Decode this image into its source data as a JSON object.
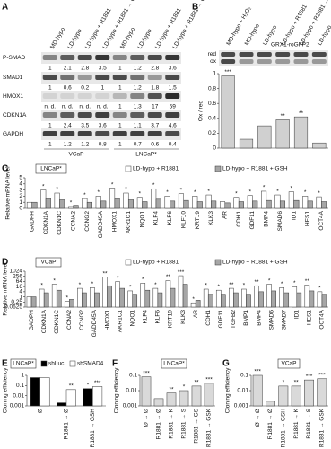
{
  "panel_labels": [
    "A",
    "B",
    "C",
    "D",
    "E",
    "F",
    "G"
  ],
  "blot": {
    "lanes": [
      "MD-hypo",
      "LD-hypo",
      "LD-hypo + R1881",
      "LD-hypo + R1881 → GSH",
      "MD-hypo",
      "LD-hypo",
      "LD-hypo + R1881",
      "LD-hypo + R1881 → GSH"
    ],
    "rows": [
      {
        "label": "P-SMAD",
        "values": [
          1,
          2.1,
          2.8,
          3.5,
          1,
          1.2,
          2.8,
          3.6
        ]
      },
      {
        "label": "SMAD1",
        "values": [
          1,
          0.6,
          0.2,
          1,
          1,
          1.2,
          1.8,
          1.5
        ]
      },
      {
        "label": "HMOX1",
        "values": [
          "n. d.",
          "n. d.",
          "n. d.",
          "n. d.",
          1,
          1.3,
          17,
          59
        ]
      },
      {
        "label": "CDKN1A",
        "values": [
          1,
          2.4,
          3.5,
          3.6,
          1,
          1.1,
          3.7,
          4.6
        ]
      },
      {
        "label": "GAPDH",
        "values": [
          1,
          1.2,
          1.2,
          0.8,
          1,
          0.7,
          0.6,
          0.4
        ]
      }
    ],
    "groups": [
      "VCaP",
      "LNCaP*"
    ]
  },
  "redox_blot": {
    "probe": "GRX1-roGFP2",
    "bands": [
      "red",
      "ox"
    ]
  },
  "chart_data": [
    {
      "type": "bar",
      "ylabel": "Ox / red",
      "categories": [
        "MD-hypo + H₂O₂",
        "MD-hypo",
        "LD-hypo",
        "LD-hypo + R1881",
        "LD-hypo + R1881 → GSH",
        "LD-hypo → GSH"
      ],
      "values": [
        0.97,
        0.12,
        0.3,
        0.38,
        0.42,
        0.07
      ],
      "significance": [
        "***",
        null,
        null,
        "**",
        "**",
        null
      ],
      "color": "#d0d0d0",
      "ylim": [
        0,
        1
      ],
      "yticks": [
        0,
        0.2,
        0.4,
        0.6,
        0.8,
        1
      ]
    },
    {
      "type": "bar",
      "title": "LNCaP*",
      "ylabel": "Relative mRNA level",
      "categories": [
        "GADPH",
        "CDKN1A",
        "CDKN1C",
        "CCNA2",
        "CCNG2",
        "GADD45A",
        "HMOX1",
        "AKR1C1",
        "NQO1",
        "KLF4",
        "KLF6",
        "KLF10",
        "KRT19",
        "KLK3",
        "AR",
        "CDH1",
        "GDF11",
        "BMP4",
        "SMAD6",
        "ID1",
        "HES1",
        "OCT4A"
      ],
      "series": [
        {
          "name": "LD-hypo + R1881",
          "color": "#ffffff",
          "values": [
            1,
            3,
            2.5,
            0.3,
            1.6,
            2,
            3.3,
            2.5,
            1.8,
            3.2,
            2,
            2.4,
            2,
            2.2,
            1.1,
            1.8,
            2.1,
            2.8,
            2.2,
            2.7,
            2,
            1.9
          ],
          "significance": [
            null,
            "*",
            "*",
            "*",
            "*",
            "*",
            "*",
            "*",
            "*",
            "*",
            "*",
            "*",
            "*",
            "*",
            null,
            "*",
            "*",
            "*",
            "*",
            "*",
            "*",
            "*"
          ]
        },
        {
          "name": "LD-hypo + R1881 + GSH",
          "color": "#a6a6a6",
          "values": [
            1,
            1.6,
            1.4,
            0.5,
            1,
            1.2,
            1.6,
            1.4,
            1.1,
            1.5,
            1.2,
            1.3,
            1.1,
            1.2,
            0.9,
            1.1,
            1.2,
            1.3,
            1.2,
            1.3,
            1.2,
            1.1
          ]
        }
      ],
      "ylim": [
        0,
        5
      ],
      "yticks": [
        0,
        1,
        2,
        3,
        4,
        5
      ]
    },
    {
      "type": "bar",
      "title": "VCaP",
      "ylabel": "Relative mRNA level",
      "log_scale": true,
      "categories": [
        "GADPH",
        "CDKN1A",
        "CDKN1C",
        "CCNA2",
        "CCNG2",
        "GADD45A",
        "HMOX1",
        "AKR1C1",
        "NQO1",
        "KLF4",
        "KLF6",
        "KRT19",
        "KLK3",
        "AR",
        "CDH1",
        "GDF11",
        "TGFB2",
        "BMP1",
        "BMP4",
        "SMAD6",
        "SMAD7",
        "ID1",
        "HES1",
        "OCT4A"
      ],
      "series": [
        {
          "name": "LD-hypo + R1881",
          "color": "#ffffff",
          "values": [
            1,
            8,
            30,
            0.3,
            10,
            12,
            200,
            60,
            5,
            40,
            10,
            80,
            300,
            0.2,
            8,
            6,
            10,
            8,
            20,
            30,
            12,
            15,
            25,
            4
          ],
          "significance": [
            null,
            "*",
            "*",
            "*",
            "*",
            "*",
            "**",
            "*",
            "*",
            "*",
            "*",
            "**",
            "***",
            "*",
            "*",
            "*",
            "**",
            "*",
            "**",
            "*",
            "*",
            "*",
            "**",
            "*"
          ]
        },
        {
          "name": "LD-hypo + R1881 + GSH",
          "color": "#a6a6a6",
          "values": [
            1,
            3,
            6,
            0.5,
            3,
            3,
            20,
            10,
            2,
            6,
            3,
            10,
            30,
            0.4,
            2,
            2,
            3,
            2,
            4,
            5,
            3,
            3,
            5,
            2
          ]
        }
      ],
      "ylim": [
        0.0625,
        1024
      ],
      "yticks": [
        0.0625,
        0.25,
        1,
        4,
        16,
        64,
        256,
        1024
      ]
    },
    {
      "type": "bar",
      "title": "LNCaP*",
      "ylabel": "Cloning efficiency",
      "log_scale": true,
      "categories": [
        "Ø",
        "R1881 → Ø",
        "R1881 → GSH"
      ],
      "series": [
        {
          "name": "shLuc",
          "color": "#000000",
          "values": [
            0.6,
            0.002,
            0.05
          ],
          "significance": [
            null,
            null,
            "*"
          ]
        },
        {
          "name": "shSMAD4",
          "color": "#ffffff",
          "values": [
            0.6,
            0.04,
            0.08
          ],
          "significance": [
            null,
            "**",
            "***"
          ]
        }
      ],
      "ylim": [
        0.001,
        1
      ],
      "yticks": [
        0.001,
        0.01,
        0.1,
        1
      ]
    },
    {
      "type": "bar",
      "title": "LNCaP*",
      "ylabel": "Cloning efficiency",
      "log_scale": true,
      "categories": [
        "Ø → Ø",
        "R1881 → Ø",
        "R1881 → K",
        "R1881 → S",
        "R1881 → GS",
        "R1881 → GSK"
      ],
      "values": [
        0.08,
        0.003,
        0.007,
        0.01,
        0.02,
        0.03
      ],
      "significance": [
        "***",
        null,
        "**",
        "*",
        "**",
        "***"
      ],
      "color": "#d9d9d9",
      "ylim": [
        0.001,
        0.1
      ],
      "yticks": [
        0.001,
        0.01,
        0.1
      ]
    },
    {
      "type": "bar",
      "title": "VCaP",
      "ylabel": "Cloning efficiency",
      "log_scale": true,
      "categories": [
        "Ø → Ø",
        "R1881 → Ø",
        "R1881 → GSH",
        "R1881 → K",
        "R1881 → S",
        "R1881 → GSK"
      ],
      "values": [
        0.1,
        0.002,
        0.02,
        0.02,
        0.05,
        0.06
      ],
      "significance": [
        "***",
        null,
        "*",
        "**",
        "***",
        "***"
      ],
      "color": "#d9d9d9",
      "ylim": [
        0.001,
        0.1
      ],
      "yticks": [
        0.001,
        0.01,
        0.1
      ]
    }
  ]
}
